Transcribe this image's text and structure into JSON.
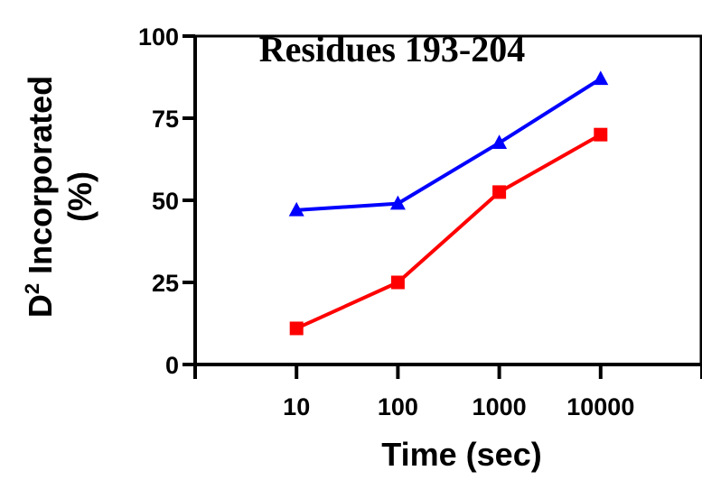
{
  "chart_data": {
    "type": "line",
    "title": "Residues 193-204",
    "xlabel": "Time (sec)",
    "ylabel_main": "D",
    "ylabel_superscript": "2",
    "ylabel_rest": " Incorporated",
    "ylabel_line2": "(%)",
    "x_scale": "log",
    "xlim": [
      1,
      100000
    ],
    "ylim": [
      0,
      100
    ],
    "xticks": [
      10,
      100,
      1000,
      10000
    ],
    "xtick_labels": [
      "10",
      "100",
      "1000",
      "10000"
    ],
    "yticks": [
      0,
      25,
      50,
      75,
      100
    ],
    "ytick_labels": [
      "0",
      "25",
      "50",
      "75",
      "100"
    ],
    "grid": false,
    "series": [
      {
        "marker": "triangle",
        "color": "#0000ff",
        "x": [
          10,
          100,
          1000,
          10000
        ],
        "values": [
          47,
          49,
          67.5,
          87
        ]
      },
      {
        "marker": "square",
        "color": "#ff0000",
        "x": [
          10,
          100,
          1000,
          10000
        ],
        "values": [
          11,
          25,
          52.5,
          70
        ]
      }
    ]
  }
}
